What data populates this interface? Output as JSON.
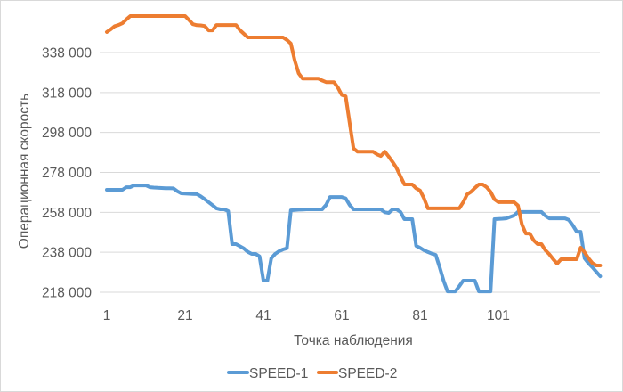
{
  "chart_data": {
    "type": "line",
    "title": "",
    "xlabel": "Точка наблюдения",
    "ylabel": "Операционная скорость",
    "ylim": [
      218000,
      358000
    ],
    "yticks": [
      218000,
      238000,
      258000,
      278000,
      298000,
      318000,
      338000
    ],
    "ytick_labels": [
      "218 000",
      "238 000",
      "258 000",
      "278 000",
      "298 000",
      "318 000",
      "338 000"
    ],
    "xticks": [
      1,
      21,
      41,
      61,
      81,
      101
    ],
    "xtick_labels": [
      "1",
      "21",
      "41",
      "61",
      "81",
      "101"
    ],
    "xlim": [
      1,
      127
    ],
    "grid": "horizontal",
    "legend_position": "bottom",
    "series": [
      {
        "name": "SPEED-1",
        "color": "#5b9bd5",
        "values": [
          269300,
          269300,
          269300,
          269300,
          269300,
          270600,
          270600,
          271500,
          271500,
          271500,
          271500,
          270600,
          270400,
          270300,
          270200,
          270100,
          270100,
          270000,
          268600,
          267500,
          267400,
          267300,
          267200,
          267100,
          266000,
          264600,
          263100,
          261600,
          260000,
          259500,
          259500,
          258600,
          242100,
          242100,
          241000,
          239900,
          238200,
          237200,
          237200,
          236000,
          223800,
          223800,
          235000,
          237200,
          238500,
          239400,
          240000,
          259000,
          259200,
          259300,
          259400,
          259500,
          259500,
          259500,
          259500,
          259500,
          261700,
          265700,
          265700,
          265700,
          265700,
          265000,
          261700,
          259500,
          259500,
          259500,
          259500,
          259500,
          259500,
          259500,
          259500,
          258000,
          257700,
          259500,
          259500,
          258200,
          254600,
          254600,
          254600,
          241200,
          240200,
          239000,
          238100,
          237300,
          236700,
          230500,
          223800,
          218400,
          218400,
          218400,
          221000,
          223800,
          223800,
          223800,
          223800,
          218400,
          218400,
          218400,
          218400,
          254600,
          254700,
          254800,
          255000,
          255700,
          256400,
          258200,
          258200,
          258200,
          258200,
          258200,
          258200,
          258200,
          256300,
          255000,
          255000,
          255000,
          255000,
          255000,
          254200,
          251500,
          248300,
          248300,
          235000,
          232500,
          230500,
          228200,
          226000
        ]
      },
      {
        "name": "SPEED-2",
        "color": "#ed7d31",
        "values": [
          348300,
          349600,
          351200,
          351800,
          352700,
          354600,
          356300,
          356300,
          356300,
          356300,
          356300,
          356300,
          356300,
          356300,
          356300,
          356300,
          356300,
          356300,
          356300,
          356300,
          356300,
          354300,
          352200,
          351700,
          351600,
          351300,
          349100,
          349100,
          351800,
          351800,
          351800,
          351800,
          351800,
          351800,
          349200,
          347400,
          345600,
          345600,
          345600,
          345600,
          345600,
          345600,
          345600,
          345600,
          345600,
          345600,
          344300,
          342500,
          334000,
          327600,
          325000,
          325000,
          325000,
          325000,
          325000,
          324000,
          323200,
          323200,
          323200,
          320500,
          316800,
          316100,
          303000,
          290000,
          288400,
          288400,
          288400,
          288400,
          288400,
          287000,
          286200,
          288400,
          285900,
          283200,
          280200,
          276000,
          272000,
          272000,
          272000,
          270000,
          268900,
          265000,
          260000,
          260000,
          260000,
          260000,
          260000,
          260000,
          260000,
          260000,
          260000,
          263000,
          267000,
          268300,
          270200,
          272000,
          272000,
          270600,
          268300,
          264500,
          263100,
          263100,
          263100,
          263100,
          263100,
          261400,
          252000,
          247400,
          247400,
          244000,
          242100,
          242100,
          239000,
          237000,
          234500,
          232300,
          234500,
          234500,
          234500,
          234500,
          234500,
          240300,
          238000,
          235000,
          232600,
          231400,
          231400
        ]
      }
    ]
  },
  "legend": {
    "items": [
      {
        "label": "SPEED-1",
        "color": "#5b9bd5"
      },
      {
        "label": "SPEED-2",
        "color": "#ed7d31"
      }
    ]
  }
}
